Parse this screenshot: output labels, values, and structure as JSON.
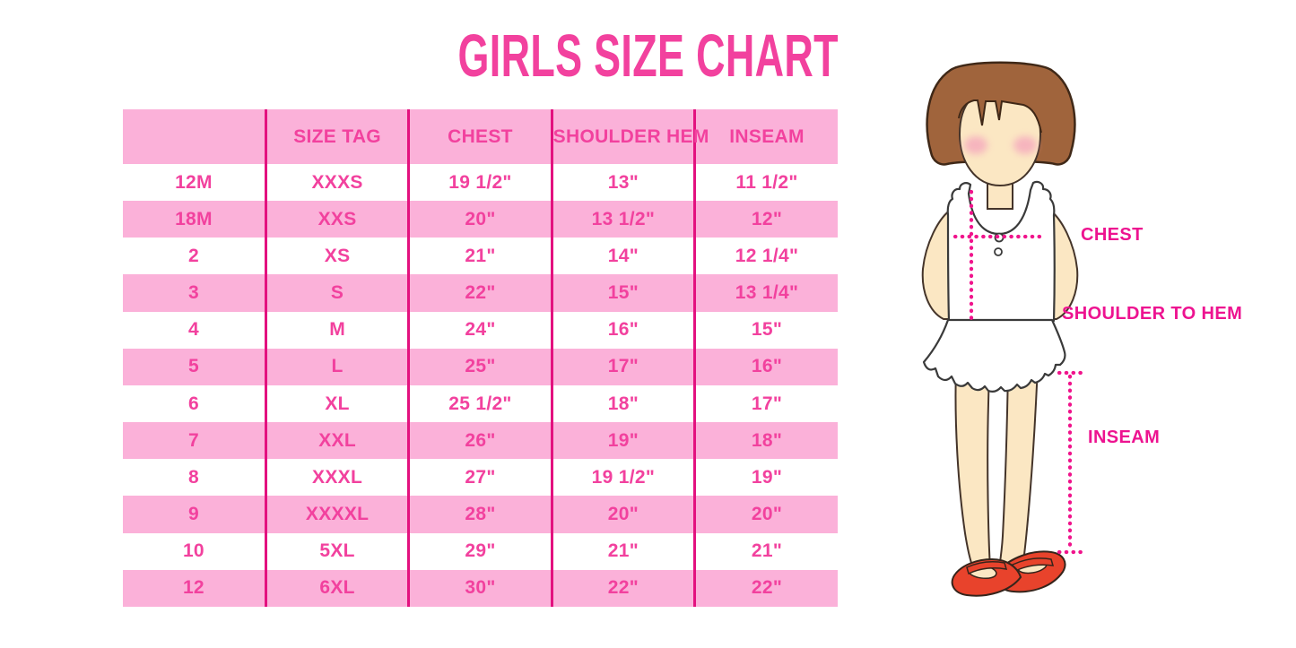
{
  "title": "GIRLS SIZE CHART",
  "chart_data": {
    "type": "table",
    "title": "GIRLS SIZE CHART",
    "columns": [
      "",
      "SIZE TAG",
      "CHEST",
      "SHOULDER HEM",
      "INSEAM"
    ],
    "rows": [
      [
        "12M",
        "XXXS",
        "19 1/2\"",
        "13\"",
        "11 1/2\""
      ],
      [
        "18M",
        "XXS",
        "20\"",
        "13 1/2\"",
        "12\""
      ],
      [
        "2",
        "XS",
        "21\"",
        "14\"",
        "12 1/4\""
      ],
      [
        "3",
        "S",
        "22\"",
        "15\"",
        "13 1/4\""
      ],
      [
        "4",
        "M",
        "24\"",
        "16\"",
        "15\""
      ],
      [
        "5",
        "L",
        "25\"",
        "17\"",
        "16\""
      ],
      [
        "6",
        "XL",
        "25 1/2\"",
        "18\"",
        "17\""
      ],
      [
        "7",
        "XXL",
        "26\"",
        "19\"",
        "18\""
      ],
      [
        "8",
        "XXXL",
        "27\"",
        "19 1/2\"",
        "19\""
      ],
      [
        "9",
        "XXXXL",
        "28\"",
        "20\"",
        "20\""
      ],
      [
        "10",
        "5XL",
        "29\"",
        "21\"",
        "21\""
      ],
      [
        "12",
        "6XL",
        "30\"",
        "22\"",
        "22\""
      ]
    ],
    "row_striping": [
      "white",
      "pink"
    ],
    "grid": "vertical-dividers-only",
    "legend_position": "none"
  },
  "figure": {
    "labels": {
      "chest": "CHEST",
      "shoulder_to_hem": "SHOULDER TO HEM",
      "inseam": "INSEAM"
    }
  },
  "colors": {
    "title_pink": "#F2419E",
    "row_pink": "#FBB1D9",
    "divider_pink": "#E3117F",
    "cell_text_pink": "#F2419E",
    "label_magenta": "#ED1390",
    "measure_dots": "#F0148C",
    "hair_brown": "#A0643C",
    "skin": "#FBE7C3",
    "shoe_red": "#E8432C"
  }
}
